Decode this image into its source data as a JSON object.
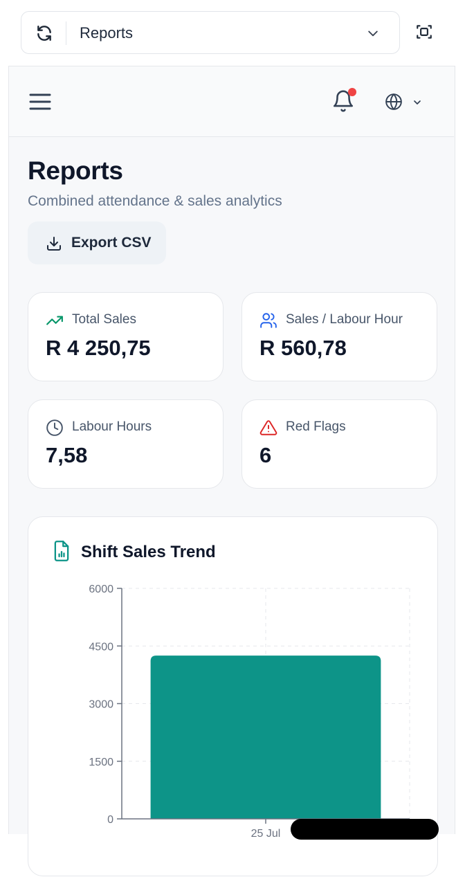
{
  "browser": {
    "title": "Reports"
  },
  "page": {
    "title": "Reports",
    "subtitle": "Combined attendance & sales analytics",
    "export_label": "Export CSV"
  },
  "stats": [
    {
      "label": "Total Sales",
      "value": "R 4 250,75",
      "icon": "trending-up-icon"
    },
    {
      "label": "Sales / Labour Hour",
      "value": "R 560,78",
      "icon": "users-icon"
    },
    {
      "label": "Labour Hours",
      "value": "7,58",
      "icon": "clock-icon"
    },
    {
      "label": "Red Flags",
      "value": "6",
      "icon": "alert-triangle-icon"
    }
  ],
  "colors": {
    "accent": "#0d9488",
    "danger": "#ef4444",
    "muted": "#64748b"
  },
  "chart_data": {
    "type": "bar",
    "title": "Shift Sales Trend",
    "categories": [
      "25 Jul"
    ],
    "values": [
      4250.75
    ],
    "yticks": [
      0,
      1500,
      3000,
      4500,
      6000
    ],
    "ylim": [
      0,
      6000
    ],
    "grid": true,
    "color": "#0d9488"
  }
}
